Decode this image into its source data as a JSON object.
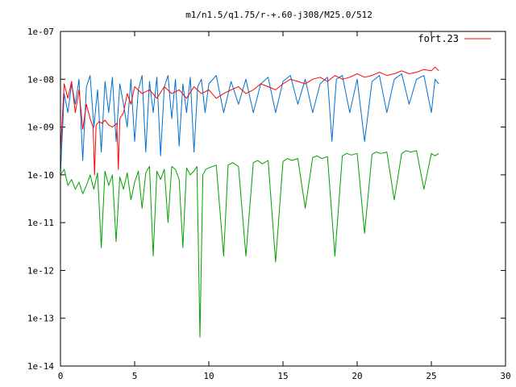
{
  "chart_data": {
    "type": "line",
    "title": "m1/n1.5/q1.75/r-+.60-j308/M25.0/512",
    "xlabel": "",
    "ylabel": "",
    "xlim": [
      0,
      30
    ],
    "ylim": [
      1e-14,
      1e-07
    ],
    "yscale": "log",
    "grid": false,
    "legend_position": "top-right",
    "x_ticks": [
      0,
      5,
      10,
      15,
      20,
      25,
      30
    ],
    "x_tick_labels": [
      "0",
      "5",
      "10",
      "15",
      "20",
      "25",
      "30"
    ],
    "y_ticks": [
      1e-14,
      1e-13,
      1e-12,
      1e-11,
      1e-10,
      1e-09,
      1e-08,
      1e-07
    ],
    "y_tick_labels": [
      "1e-14",
      "1e-13",
      "1e-12",
      "1e-11",
      "1e-10",
      "1e-09",
      "1e-08",
      "1e-07"
    ],
    "series": [
      {
        "name": "fort.23",
        "color": "#ff0000",
        "x": [
          0.0,
          0.25,
          0.5,
          0.75,
          1.0,
          1.25,
          1.5,
          1.75,
          2.0,
          2.2,
          2.3,
          2.4,
          2.6,
          2.8,
          3.0,
          3.25,
          3.5,
          3.8,
          3.9,
          4.0,
          4.25,
          4.5,
          4.75,
          5.0,
          5.5,
          6.0,
          6.5,
          7.0,
          7.5,
          8.0,
          8.5,
          9.0,
          9.5,
          10.0,
          10.5,
          11.0,
          11.5,
          12.0,
          12.5,
          13.0,
          13.5,
          14.0,
          14.5,
          15.0,
          15.5,
          16.0,
          16.5,
          17.0,
          17.5,
          18.0,
          18.5,
          19.0,
          19.5,
          20.0,
          20.5,
          21.0,
          21.5,
          22.0,
          22.5,
          23.0,
          23.5,
          24.0,
          24.5,
          25.0,
          25.25,
          25.5
        ],
        "y": [
          3e-10,
          8e-09,
          4e-09,
          9e-09,
          2e-09,
          6e-09,
          9e-10,
          3e-09,
          1.5e-09,
          1e-09,
          1e-10,
          1.1e-09,
          1.3e-09,
          1.2e-09,
          1.4e-09,
          1.1e-09,
          1e-09,
          1.2e-09,
          1.3e-10,
          1.5e-09,
          2e-09,
          5e-09,
          3e-09,
          7e-09,
          5e-09,
          6e-09,
          4e-09,
          7e-09,
          5e-09,
          6e-09,
          4e-09,
          7e-09,
          5e-09,
          6e-09,
          4e-09,
          5e-09,
          6e-09,
          7e-09,
          5e-09,
          6e-09,
          8e-09,
          7e-09,
          6e-09,
          8e-09,
          1e-08,
          9e-09,
          8e-09,
          1e-08,
          1.1e-08,
          9e-09,
          1.2e-08,
          1e-08,
          1.1e-08,
          1.3e-08,
          1.1e-08,
          1.2e-08,
          1.4e-08,
          1.2e-08,
          1.3e-08,
          1.5e-08,
          1.3e-08,
          1.4e-08,
          1.6e-08,
          1.5e-08,
          1.8e-08,
          1.5e-08
        ]
      },
      {
        "color": "#0070d0",
        "x": [
          0.0,
          0.25,
          0.5,
          0.75,
          1.0,
          1.25,
          1.5,
          1.75,
          2.0,
          2.25,
          2.5,
          2.75,
          3.0,
          3.25,
          3.5,
          3.75,
          4.0,
          4.25,
          4.5,
          4.75,
          5.0,
          5.25,
          5.5,
          5.75,
          6.0,
          6.25,
          6.5,
          6.75,
          7.0,
          7.25,
          7.5,
          7.75,
          8.0,
          8.25,
          8.5,
          8.75,
          9.0,
          9.25,
          9.5,
          9.75,
          10.0,
          10.5,
          11.0,
          11.5,
          12.0,
          12.5,
          13.0,
          13.5,
          14.0,
          14.5,
          15.0,
          15.5,
          16.0,
          16.5,
          17.0,
          17.5,
          18.0,
          18.3,
          18.6,
          19.0,
          19.5,
          20.0,
          20.5,
          21.0,
          21.5,
          22.0,
          22.5,
          23.0,
          23.5,
          24.0,
          24.5,
          25.0,
          25.25,
          25.5
        ],
        "y": [
          1e-10,
          5e-09,
          2e-09,
          8e-09,
          3e-09,
          1e-08,
          2e-10,
          7e-09,
          1.2e-08,
          1e-09,
          6e-09,
          3e-10,
          9e-09,
          2e-09,
          1.1e-08,
          5e-10,
          8e-09,
          3e-09,
          1e-09,
          1e-08,
          5e-10,
          6e-09,
          1.2e-08,
          3e-10,
          9e-09,
          2e-09,
          1.1e-08,
          2.5e-10,
          7e-09,
          1.2e-08,
          1.5e-09,
          1e-08,
          4e-10,
          8e-09,
          2e-09,
          1.1e-08,
          3e-10,
          7e-09,
          1e-08,
          2e-09,
          8e-09,
          1.2e-08,
          2e-09,
          9e-09,
          3e-09,
          1e-08,
          2e-09,
          8e-09,
          1.1e-08,
          2e-09,
          9e-09,
          1.2e-08,
          3e-09,
          1e-08,
          2e-09,
          8e-09,
          1.1e-08,
          5e-10,
          1e-08,
          1.2e-08,
          2e-09,
          1e-08,
          5e-10,
          9e-09,
          1.2e-08,
          2e-09,
          1e-08,
          1.3e-08,
          3e-09,
          1e-08,
          1.2e-08,
          2e-09,
          1e-08,
          8e-09
        ]
      },
      {
        "color": "#00a000",
        "x": [
          0.0,
          0.25,
          0.5,
          0.75,
          1.0,
          1.25,
          1.5,
          1.75,
          2.0,
          2.25,
          2.5,
          2.75,
          3.0,
          3.25,
          3.5,
          3.75,
          4.0,
          4.25,
          4.5,
          4.75,
          5.0,
          5.25,
          5.5,
          5.75,
          6.0,
          6.25,
          6.5,
          6.75,
          7.0,
          7.25,
          7.5,
          7.75,
          8.0,
          8.25,
          8.5,
          8.75,
          9.0,
          9.2,
          9.4,
          9.6,
          9.8,
          10.0,
          10.5,
          11.0,
          11.3,
          11.6,
          12.0,
          12.5,
          13.0,
          13.3,
          13.6,
          14.0,
          14.5,
          15.0,
          15.3,
          15.6,
          16.0,
          16.5,
          17.0,
          17.3,
          17.6,
          18.0,
          18.5,
          19.0,
          19.3,
          19.6,
          20.0,
          20.5,
          21.0,
          21.3,
          21.6,
          22.0,
          22.5,
          23.0,
          23.3,
          23.6,
          24.0,
          24.5,
          25.0,
          25.25,
          25.5
        ],
        "y": [
          1e-10,
          1.3e-10,
          6e-11,
          8e-11,
          5e-11,
          7e-11,
          4e-11,
          6e-11,
          1e-10,
          5e-11,
          1.1e-10,
          3e-12,
          1.2e-10,
          6e-11,
          1e-10,
          4e-12,
          9e-11,
          5e-11,
          1.1e-10,
          3e-11,
          7e-11,
          1.2e-10,
          2e-11,
          1.1e-10,
          1.5e-10,
          2e-12,
          1.2e-10,
          8e-11,
          1.3e-10,
          1e-11,
          1.5e-10,
          1.3e-10,
          8e-11,
          3e-12,
          1.4e-10,
          1e-10,
          1.2e-10,
          1.5e-10,
          4e-14,
          1e-10,
          1.3e-10,
          1.4e-10,
          1.6e-10,
          2e-12,
          1.6e-10,
          1.8e-10,
          1.5e-10,
          2e-12,
          1.8e-10,
          2e-10,
          1.7e-10,
          2e-10,
          1.5e-12,
          1.9e-10,
          2.2e-10,
          2e-10,
          2.2e-10,
          2e-11,
          2.3e-10,
          2.5e-10,
          2.2e-10,
          2.4e-10,
          2e-12,
          2.5e-10,
          2.8e-10,
          2.6e-10,
          2.8e-10,
          6e-12,
          2.7e-10,
          3e-10,
          2.8e-10,
          3e-10,
          3e-11,
          2.8e-10,
          3.2e-10,
          3e-10,
          3.2e-10,
          5e-11,
          2.8e-10,
          2.5e-10,
          2.8e-10
        ]
      }
    ]
  }
}
